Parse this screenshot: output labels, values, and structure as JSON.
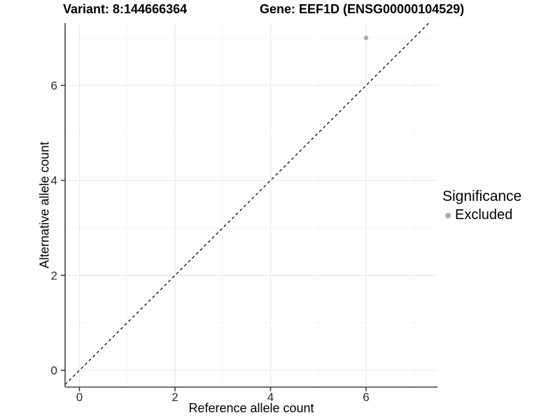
{
  "header": {
    "title_left": "Variant: 8:144666364",
    "title_right": "Gene: EEF1D (ENSG00000104529)"
  },
  "chart_data": {
    "type": "scatter",
    "title": "Variant: 8:144666364    Gene: EEF1D (ENSG00000104529)",
    "xlabel": "Reference allele count",
    "ylabel": "Alternative allele count",
    "xticks": [
      0,
      2,
      4,
      6
    ],
    "yticks": [
      0,
      2,
      4,
      6
    ],
    "xminor": [
      1,
      3,
      5,
      7
    ],
    "yminor": [
      1,
      3,
      5,
      7
    ],
    "xlim": [
      -0.3,
      7.5
    ],
    "ylim": [
      -0.35,
      7.31
    ],
    "grid": true,
    "points": [
      {
        "x": 6,
        "y": 7,
        "series": "Excluded"
      }
    ],
    "reference_line": {
      "type": "identity",
      "slope": 1,
      "intercept": 0,
      "style": "dashed"
    },
    "legend": {
      "title": "Significance",
      "position": "right",
      "items": [
        {
          "label": "Excluded",
          "color": "#ababab"
        }
      ]
    }
  },
  "colors": {
    "background": "#ffffff",
    "grid_major": "#eaeaea",
    "grid_minor": "#f5f5f5",
    "axis_line_left": "#4d4d4d",
    "axis_line_bottom": "#7a7a7a",
    "tick_mark": "#333333",
    "tick_label": "#2b2b2b",
    "reference_line": "#000000",
    "point": "#ababab",
    "title_text": "#000000"
  }
}
